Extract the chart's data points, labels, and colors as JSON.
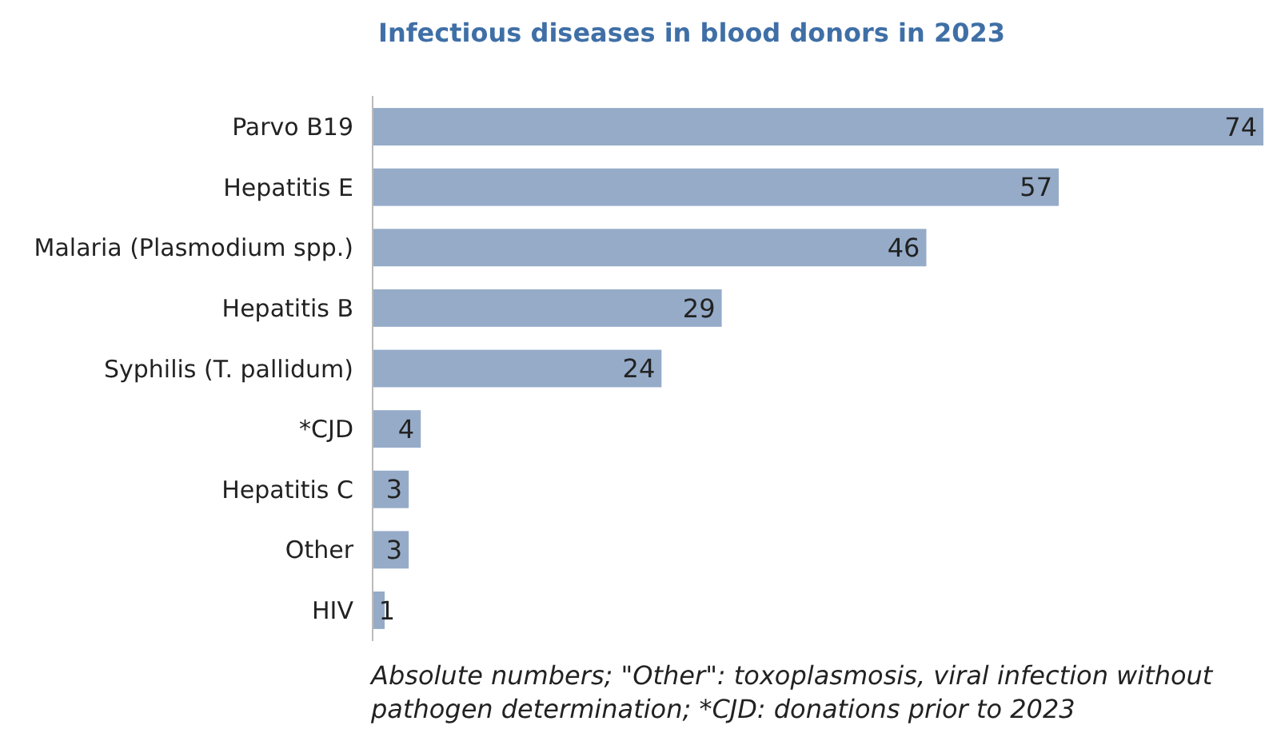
{
  "chart_data": {
    "type": "bar",
    "orientation": "horizontal",
    "title": "Infectious diseases in blood donors in 2023",
    "categories": [
      "Parvo B19",
      "Hepatitis E",
      "Malaria (Plasmodium spp.)",
      "Hepatitis B",
      "Syphilis (T. pallidum)",
      "*CJD",
      "Hepatitis C",
      "Other",
      "HIV"
    ],
    "values": [
      74,
      57,
      46,
      29,
      24,
      4,
      3,
      3,
      1
    ],
    "color": "#95abc8",
    "data_labels": true,
    "annotations": [
      "Absolute numbers; \"Other\": toxoplasmosis, viral infection without pathogen determination; *CJD: donations prior to 2023"
    ]
  }
}
